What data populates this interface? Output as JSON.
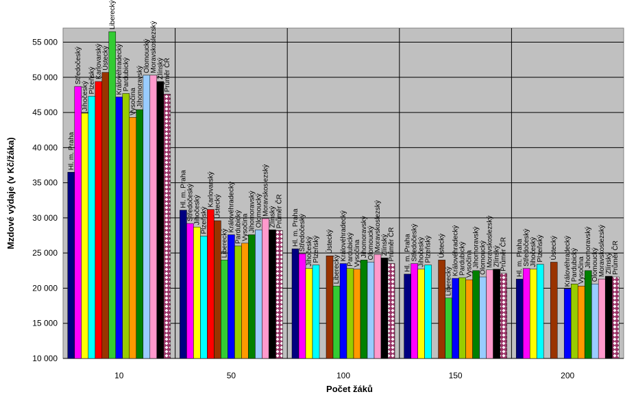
{
  "chart_data": {
    "type": "bar",
    "x_label": "Počet žáků",
    "y_label": "Mzdové výdaje (v Kč/žáka)",
    "categories": [
      "10",
      "50",
      "100",
      "150",
      "200"
    ],
    "ylim": [
      10000,
      57000
    ],
    "yticks": [
      {
        "value": 10000,
        "label": "10 000"
      },
      {
        "value": 15000,
        "label": "15 000"
      },
      {
        "value": 20000,
        "label": "20 000"
      },
      {
        "value": 25000,
        "label": "25 000"
      },
      {
        "value": 30000,
        "label": "30 000"
      },
      {
        "value": 35000,
        "label": "35 000"
      },
      {
        "value": 40000,
        "label": "40 000"
      },
      {
        "value": 45000,
        "label": "45 000"
      },
      {
        "value": 50000,
        "label": "50 000"
      },
      {
        "value": 55000,
        "label": "55 000"
      }
    ],
    "grid": true,
    "series": [
      {
        "name": "Hl. m. Praha",
        "color": "#000080",
        "values": [
          36500,
          31100,
          25600,
          22000,
          21300
        ]
      },
      {
        "name": "Středočeský",
        "color": "#ff00ff",
        "values": [
          48700,
          29200,
          24900,
          23500,
          22800
        ]
      },
      {
        "name": "Jihočeský",
        "color": "#ffff00",
        "values": [
          44900,
          28700,
          22800,
          22700,
          22700
        ]
      },
      {
        "name": "Plzeňský",
        "color": "#00ffff",
        "values": [
          47300,
          27400,
          23300,
          23300,
          23400
        ]
      },
      {
        "name": "Karlovarský",
        "color": "#ff0000",
        "values": [
          49400,
          31200,
          null,
          null,
          null
        ]
      },
      {
        "name": "Ústecký",
        "color": "#993300",
        "values": [
          50700,
          29600,
          24600,
          24000,
          23700
        ]
      },
      {
        "name": "Liberecký",
        "color": "#33cc33",
        "values": [
          56500,
          24000,
          20300,
          18600,
          null
        ]
      },
      {
        "name": "Královéhradecký",
        "color": "#0000ff",
        "values": [
          47200,
          27600,
          23500,
          21400,
          19900
        ]
      },
      {
        "name": "Pardubický",
        "color": "#99cc00",
        "values": [
          47700,
          26000,
          22800,
          21500,
          20600
        ]
      },
      {
        "name": "Vysočina",
        "color": "#ff9900",
        "values": [
          44300,
          26400,
          22700,
          21200,
          20300
        ]
      },
      {
        "name": "Jihomoravský",
        "color": "#008000",
        "values": [
          45400,
          27600,
          24000,
          22500,
          22500
        ]
      },
      {
        "name": "Olomoucký",
        "color": "#99ccff",
        "values": [
          50300,
          28300,
          23700,
          21600,
          20600
        ]
      },
      {
        "name": "Moravskoslezský",
        "color": "#ff99cc",
        "values": [
          50300,
          29900,
          24800,
          22600,
          21300
        ]
      },
      {
        "name": "Zlínský",
        "color": "#000000",
        "values": [
          49400,
          28300,
          24300,
          22700,
          21700
        ]
      },
      {
        "name": "Průměr ČR",
        "color": "#993366",
        "values": [
          47600,
          28200,
          23500,
          22100,
          21600
        ]
      }
    ]
  }
}
